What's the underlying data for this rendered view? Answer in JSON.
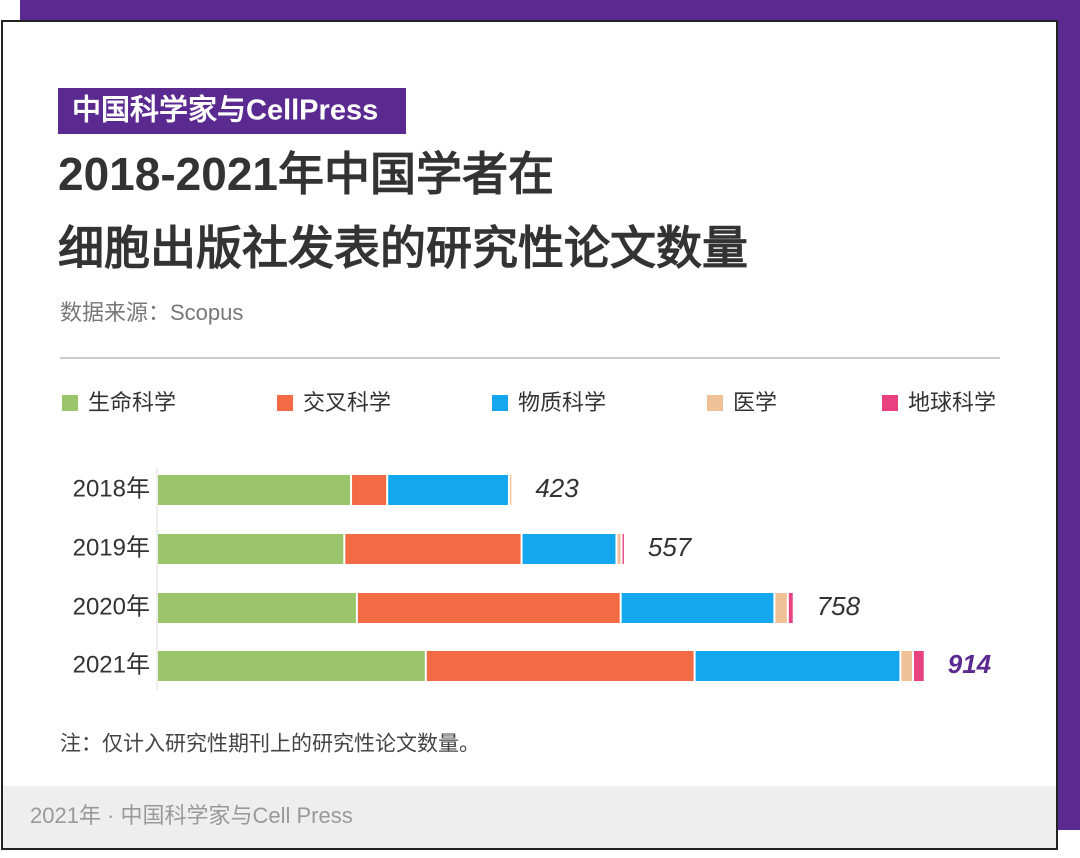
{
  "badge": "中国科学家与CellPress",
  "chart_data": {
    "type": "stacked-bar-horizontal",
    "title": [
      "2018-2021年中国学者在",
      "细胞出版社发表的研究性论文数量"
    ],
    "source": "数据来源：Scopus",
    "categories": [
      "2018年",
      "2019年",
      "2020年",
      "2021年"
    ],
    "series": [
      {
        "name": "生命科学",
        "color": "#9bc56a",
        "values": [
          231,
          223,
          238,
          320
        ]
      },
      {
        "name": "交叉科学",
        "color": "#f26b45",
        "values": [
          43,
          211,
          314,
          320
        ]
      },
      {
        "name": "物质科学",
        "color": "#14a7ee",
        "values": [
          145,
          113,
          183,
          245
        ]
      },
      {
        "name": "医学",
        "color": "#f0c096",
        "values": [
          4,
          6,
          16,
          15
        ]
      },
      {
        "name": "地球科学",
        "color": "#e8417f",
        "values": [
          0,
          4,
          7,
          14
        ]
      }
    ],
    "totals": [
      423,
      557,
      758,
      914
    ],
    "highlight_index": 3,
    "highlight_color": "#5b2a91",
    "note": "注：仅计入研究性期刊上的研究性论文数量。"
  },
  "footer": "2021年 · 中国科学家与Cell Press"
}
